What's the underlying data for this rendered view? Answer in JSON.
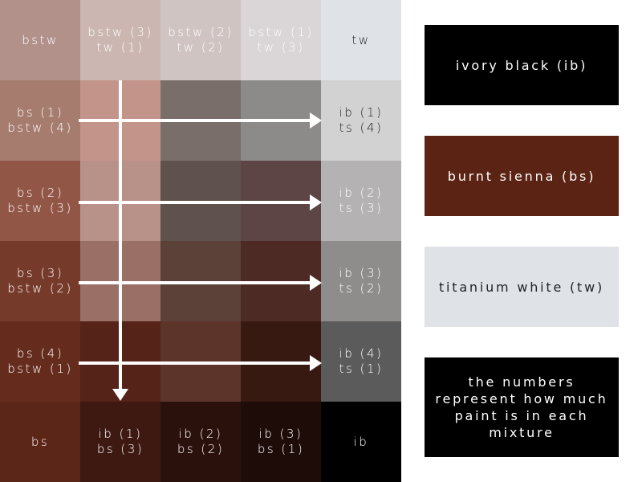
{
  "grid": [
    [
      {
        "text": "bstw",
        "bg": "#b2918b",
        "fg": "#ffffff"
      },
      {
        "text": "bstw (3)\ntw (1)",
        "bg": "#cbb6b2",
        "fg": "#ffffff"
      },
      {
        "text": "bstw (2)\ntw (2)",
        "bg": "#d0c4c2",
        "fg": "#ffffff"
      },
      {
        "text": "bstw (1)\ntw (3)",
        "bg": "#dad5d6",
        "fg": "#ffffff"
      },
      {
        "text": "tw",
        "bg": "#dfe2e7",
        "fg": "#222222"
      }
    ],
    [
      {
        "text": "bs (1)\nbstw (4)",
        "bg": "#a57c6e",
        "fg": "#ffffff"
      },
      {
        "text": "",
        "bg": "#c3958a",
        "fg": "#ffffff"
      },
      {
        "text": "",
        "bg": "#7a6e6b",
        "fg": "#ffffff"
      },
      {
        "text": "",
        "bg": "#8d8a8a",
        "fg": "#ffffff"
      },
      {
        "text": "ib (1)\nts (4)",
        "bg": "#d3d2d3",
        "fg": "#222222"
      }
    ],
    [
      {
        "text": "bs (2)\nbstw (3)",
        "bg": "#925646",
        "fg": "#ffffff"
      },
      {
        "text": "",
        "bg": "#b89189",
        "fg": "#ffffff"
      },
      {
        "text": "",
        "bg": "#5f514d",
        "fg": "#ffffff"
      },
      {
        "text": "",
        "bg": "#5d4546",
        "fg": "#ffffff"
      },
      {
        "text": "ib (2)\nts (3)",
        "bg": "#b4b2b2",
        "fg": "#ffffff"
      }
    ],
    [
      {
        "text": "bs (3)\nbstw (2)",
        "bg": "#763a2b",
        "fg": "#ffffff"
      },
      {
        "text": "",
        "bg": "#9a6f66",
        "fg": "#ffffff"
      },
      {
        "text": "",
        "bg": "#5c4138",
        "fg": "#ffffff"
      },
      {
        "text": "",
        "bg": "#4d2b24",
        "fg": "#ffffff"
      },
      {
        "text": "ib (3)\nts (2)",
        "bg": "#8f8d8c",
        "fg": "#ffffff"
      }
    ],
    [
      {
        "text": "bs (4)\nbstw (1)",
        "bg": "#652c1d",
        "fg": "#ffffff"
      },
      {
        "text": "",
        "bg": "#552317",
        "fg": "#ffffff"
      },
      {
        "text": "",
        "bg": "#5d342a",
        "fg": "#ffffff"
      },
      {
        "text": "",
        "bg": "#381912",
        "fg": "#ffffff"
      },
      {
        "text": "ib (4)\nts (1)",
        "bg": "#5c5b5b",
        "fg": "#ffffff"
      }
    ],
    [
      {
        "text": "bs",
        "bg": "#5b2517",
        "fg": "#ffffff"
      },
      {
        "text": "ib (1)\nbs (3)",
        "bg": "#3d1911",
        "fg": "#ffffff"
      },
      {
        "text": "ib (2)\nbs (2)",
        "bg": "#2a110c",
        "fg": "#ffffff"
      },
      {
        "text": "ib (3)\nbs (1)",
        "bg": "#1e0c09",
        "fg": "#ffffff"
      },
      {
        "text": "ib",
        "bg": "#000000",
        "fg": "#ffffff"
      }
    ]
  ],
  "legend": [
    {
      "text": "ivory black (ib)",
      "bg": "#000000",
      "fg": "#ffffff"
    },
    {
      "text": "burnt sienna (bs)",
      "bg": "#5b2314",
      "fg": "#ffffff"
    },
    {
      "text": "titanium white (tw)",
      "bg": "#dfe2e7",
      "fg": "#222222"
    },
    {
      "text": "the numbers represent how much paint is in each mixture",
      "bg": "#000000",
      "fg": "#ffffff"
    }
  ],
  "colors": {
    "arrow": "#ffffff"
  }
}
